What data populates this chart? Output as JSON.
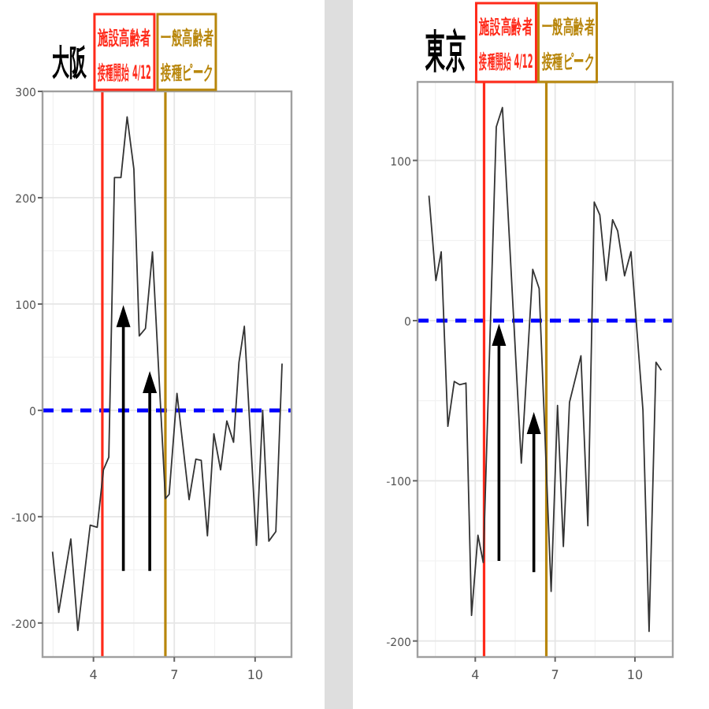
{
  "chart_data": [
    {
      "type": "line",
      "title": "大阪",
      "xlim": [
        2.11,
        11.35
      ],
      "ylim": [
        -232,
        300
      ],
      "xticks": [
        4,
        7,
        10
      ],
      "yticks": [
        -200,
        -100,
        0,
        100,
        200,
        300
      ],
      "grid": true,
      "series": [
        {
          "color": "#333333",
          "x": [
            2.48,
            2.71,
            3.16,
            3.42,
            3.88,
            4.14,
            4.37,
            4.57,
            4.78,
            5.02,
            5.25,
            5.5,
            5.7,
            5.93,
            6.19,
            6.67,
            6.81,
            7.1,
            7.55,
            7.8,
            8.0,
            8.23,
            8.47,
            8.72,
            8.95,
            9.2,
            9.4,
            9.6,
            10.05,
            10.28,
            10.51,
            10.77,
            11.0
          ],
          "values": [
            -133,
            -190,
            -121,
            -207,
            -108,
            -110,
            -56,
            -44,
            219,
            219,
            276,
            227,
            70,
            77,
            149,
            -83,
            -79,
            16,
            -84,
            -46,
            -47,
            -118,
            -22,
            -56,
            -10,
            -30,
            45,
            79,
            -127,
            0,
            -123,
            -114,
            44
          ]
        }
      ],
      "ref_lines": [
        {
          "axis": "y",
          "value": 0,
          "color": "#0000ff",
          "line_style": "dashed"
        },
        {
          "axis": "x",
          "value": 4.33,
          "color": "#ff2a1a",
          "label": "施設高齢者接種開始 4/12"
        },
        {
          "axis": "x",
          "value": 6.67,
          "color": "#b8860b",
          "label": "一般高齢者接種ピーク"
        }
      ]
    },
    {
      "type": "line",
      "title": "東京",
      "xlim": [
        1.83,
        11.42
      ],
      "ylim": [
        -210,
        149
      ],
      "xticks": [
        4,
        7,
        10
      ],
      "yticks": [
        -200,
        -100,
        0,
        100
      ],
      "grid": true,
      "series": [
        {
          "color": "#333333",
          "x": [
            2.26,
            2.52,
            2.72,
            2.97,
            3.21,
            3.41,
            3.65,
            3.86,
            4.1,
            4.3,
            4.79,
            5.02,
            5.73,
            6.16,
            6.4,
            6.85,
            7.09,
            7.31,
            7.54,
            7.97,
            8.23,
            8.47,
            8.68,
            8.92,
            9.16,
            9.35,
            9.61,
            9.85,
            10.3,
            10.53,
            10.79,
            10.99
          ],
          "values": [
            78,
            25,
            43,
            -66,
            -38,
            -40,
            -39,
            -184,
            -134,
            -151,
            121,
            133,
            -89,
            32,
            20,
            -169,
            -53,
            -141,
            -51,
            -22,
            -128,
            74,
            66,
            25,
            63,
            56,
            28,
            43,
            -56,
            -194,
            -26,
            -31
          ]
        }
      ],
      "ref_lines": [
        {
          "axis": "y",
          "value": 0,
          "color": "#0000ff",
          "line_style": "dashed"
        },
        {
          "axis": "x",
          "value": 4.33,
          "color": "#ff2a1a",
          "label": "施設高齢者接種開始 4/12"
        },
        {
          "axis": "x",
          "value": 6.67,
          "color": "#b8860b",
          "label": "一般高齢者接種ピーク"
        }
      ]
    }
  ]
}
